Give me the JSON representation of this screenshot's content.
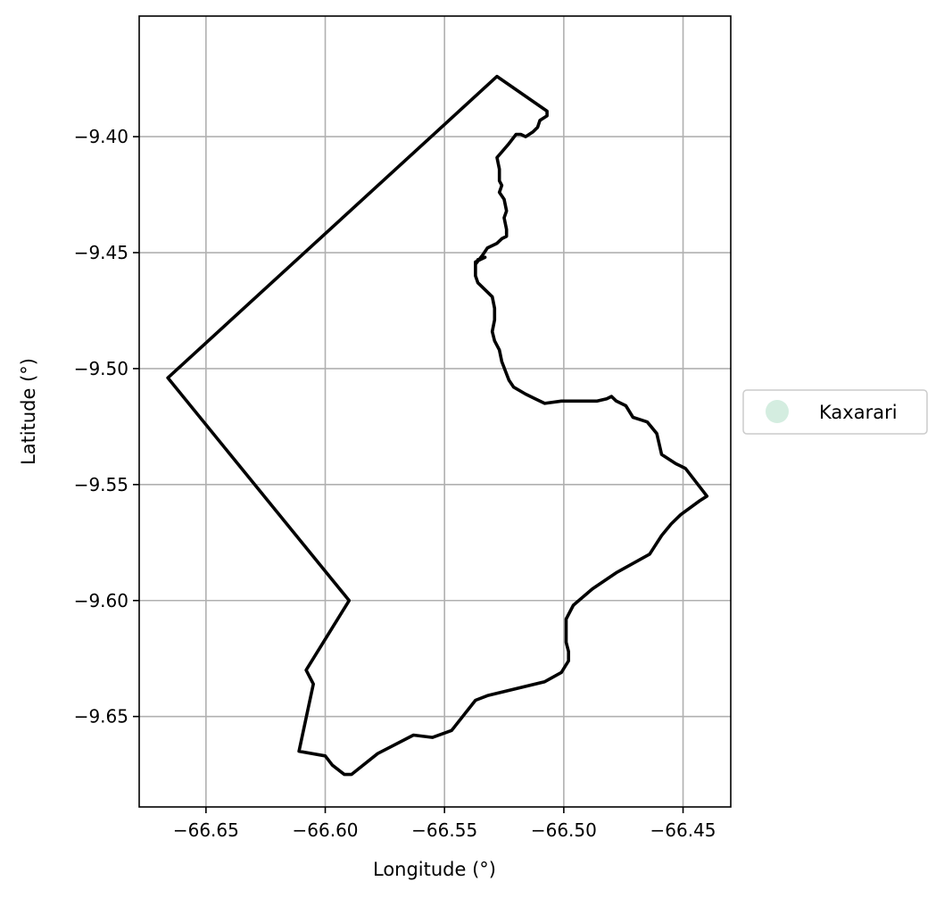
{
  "chart_data": {
    "type": "map",
    "xlabel": "Longitude (°)",
    "ylabel": "Latitude (°)",
    "xlim": [
      -66.678,
      -66.43
    ],
    "ylim": [
      -9.689,
      -9.348
    ],
    "xticks": [
      -66.65,
      -66.6,
      -66.55,
      -66.5,
      -66.45
    ],
    "xtick_labels": [
      "−66.65",
      "−66.60",
      "−66.55",
      "−66.50",
      "−66.45"
    ],
    "yticks": [
      -9.4,
      -9.45,
      -9.5,
      -9.55,
      -9.6,
      -9.65
    ],
    "ytick_labels": [
      "−9.40",
      "−9.45",
      "−9.50",
      "−9.55",
      "−9.60",
      "−9.65"
    ],
    "grid": true,
    "legend": {
      "placement": "right",
      "entries": [
        {
          "label": "Kaxarari",
          "color": "#d4ede0"
        }
      ]
    },
    "boundary_color": "#000000",
    "boundary": [
      [
        -66.528,
        -9.374
      ],
      [
        -66.507,
        -9.389
      ],
      [
        -66.507,
        -9.391
      ],
      [
        -66.51,
        -9.393
      ],
      [
        -66.511,
        -9.396
      ],
      [
        -66.513,
        -9.398
      ],
      [
        -66.516,
        -9.4
      ],
      [
        -66.518,
        -9.399
      ],
      [
        -66.52,
        -9.399
      ],
      [
        -66.523,
        -9.403
      ],
      [
        -66.528,
        -9.409
      ],
      [
        -66.527,
        -9.414
      ],
      [
        -66.527,
        -9.419
      ],
      [
        -66.526,
        -9.421
      ],
      [
        -66.527,
        -9.424
      ],
      [
        -66.525,
        -9.427
      ],
      [
        -66.524,
        -9.432
      ],
      [
        -66.525,
        -9.435
      ],
      [
        -66.524,
        -9.44
      ],
      [
        -66.524,
        -9.443
      ],
      [
        -66.526,
        -9.444
      ],
      [
        -66.528,
        -9.446
      ],
      [
        -66.532,
        -9.448
      ],
      [
        -66.534,
        -9.451
      ],
      [
        -66.537,
        -9.455
      ],
      [
        -66.536,
        -9.453
      ],
      [
        -66.533,
        -9.452
      ],
      [
        -66.537,
        -9.454
      ],
      [
        -66.537,
        -9.46
      ],
      [
        -66.536,
        -9.463
      ],
      [
        -66.533,
        -9.466
      ],
      [
        -66.53,
        -9.469
      ],
      [
        -66.529,
        -9.474
      ],
      [
        -66.529,
        -9.479
      ],
      [
        -66.53,
        -9.484
      ],
      [
        -66.529,
        -9.488
      ],
      [
        -66.527,
        -9.492
      ],
      [
        -66.526,
        -9.497
      ],
      [
        -66.523,
        -9.505
      ],
      [
        -66.521,
        -9.508
      ],
      [
        -66.516,
        -9.511
      ],
      [
        -66.512,
        -9.513
      ],
      [
        -66.508,
        -9.515
      ],
      [
        -66.501,
        -9.514
      ],
      [
        -66.49,
        -9.514
      ],
      [
        -66.486,
        -9.514
      ],
      [
        -66.482,
        -9.513
      ],
      [
        -66.48,
        -9.512
      ],
      [
        -66.478,
        -9.514
      ],
      [
        -66.474,
        -9.516
      ],
      [
        -66.471,
        -9.521
      ],
      [
        -66.468,
        -9.522
      ],
      [
        -66.465,
        -9.523
      ],
      [
        -66.461,
        -9.528
      ],
      [
        -66.459,
        -9.537
      ],
      [
        -66.453,
        -9.541
      ],
      [
        -66.449,
        -9.543
      ],
      [
        -66.44,
        -9.555
      ],
      [
        -66.443,
        -9.557
      ],
      [
        -66.451,
        -9.563
      ],
      [
        -66.455,
        -9.567
      ],
      [
        -66.459,
        -9.572
      ],
      [
        -66.464,
        -9.58
      ],
      [
        -66.478,
        -9.588
      ],
      [
        -66.488,
        -9.595
      ],
      [
        -66.496,
        -9.602
      ],
      [
        -66.499,
        -9.608
      ],
      [
        -66.499,
        -9.618
      ],
      [
        -66.498,
        -9.622
      ],
      [
        -66.498,
        -9.626
      ],
      [
        -66.501,
        -9.631
      ],
      [
        -66.508,
        -9.635
      ],
      [
        -66.532,
        -9.641
      ],
      [
        -66.537,
        -9.643
      ],
      [
        -66.547,
        -9.656
      ],
      [
        -66.555,
        -9.659
      ],
      [
        -66.563,
        -9.658
      ],
      [
        -66.578,
        -9.666
      ],
      [
        -66.589,
        -9.675
      ],
      [
        -66.592,
        -9.675
      ],
      [
        -66.597,
        -9.671
      ],
      [
        -66.6,
        -9.667
      ],
      [
        -66.611,
        -9.665
      ],
      [
        -66.605,
        -9.636
      ],
      [
        -66.608,
        -9.63
      ],
      [
        -66.59,
        -9.6
      ],
      [
        -66.666,
        -9.504
      ],
      [
        -66.528,
        -9.374
      ]
    ]
  }
}
